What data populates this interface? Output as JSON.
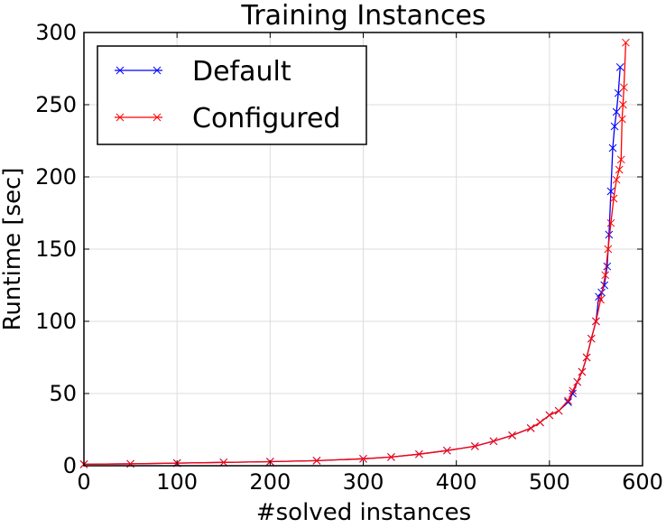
{
  "chart_data": {
    "type": "line",
    "title": "Training Instances",
    "xlabel": "#solved instances",
    "ylabel": "Runtime [sec]",
    "xlim": [
      0,
      600
    ],
    "ylim": [
      0,
      300
    ],
    "xticks": [
      0,
      100,
      200,
      300,
      400,
      500,
      600
    ],
    "yticks": [
      0,
      50,
      100,
      150,
      200,
      250,
      300
    ],
    "grid": true,
    "legend_position": "top-left",
    "marker": "x",
    "series": [
      {
        "name": "Default",
        "color": "#0000ff",
        "x": [
          0,
          50,
          100,
          150,
          200,
          250,
          300,
          330,
          360,
          390,
          420,
          440,
          460,
          480,
          490,
          500,
          510,
          520,
          525,
          530,
          535,
          540,
          545,
          550,
          553,
          556,
          559,
          562,
          564,
          566,
          568,
          570,
          572,
          574,
          576
        ],
        "y": [
          1.0,
          1.3,
          1.8,
          2.3,
          2.8,
          3.5,
          4.8,
          6.0,
          8.0,
          10.5,
          13.5,
          17.0,
          21.0,
          26.0,
          30.0,
          35.0,
          38.0,
          44.0,
          50.0,
          58.0,
          65.0,
          75.0,
          88.0,
          100.0,
          117.0,
          120.0,
          125.0,
          138.0,
          160.0,
          190.0,
          220.0,
          235.0,
          245.0,
          258.0,
          276.0
        ]
      },
      {
        "name": "Configured",
        "color": "#ff0000",
        "x": [
          0,
          50,
          100,
          150,
          200,
          250,
          300,
          330,
          360,
          390,
          420,
          440,
          460,
          480,
          490,
          500,
          510,
          520,
          525,
          530,
          535,
          540,
          545,
          550,
          555,
          560,
          563,
          566,
          569,
          572,
          575,
          577,
          578,
          579,
          580,
          582
        ],
        "y": [
          1.0,
          1.3,
          1.8,
          2.3,
          2.8,
          3.5,
          4.8,
          6.0,
          8.0,
          10.5,
          13.5,
          17.0,
          21.0,
          26.0,
          30.0,
          35.0,
          38.0,
          45.0,
          52.0,
          58.0,
          65.0,
          75.0,
          88.0,
          100.0,
          115.0,
          132.0,
          150.0,
          168.0,
          185.0,
          198.0,
          205.0,
          212.0,
          240.0,
          250.0,
          262.0,
          293.0
        ]
      }
    ]
  }
}
